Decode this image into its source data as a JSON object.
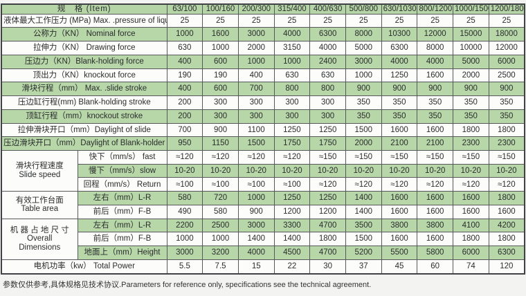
{
  "table": {
    "item_header": "规　格 (Item)",
    "models": [
      "63/100",
      "100/160",
      "200/300",
      "315/400",
      "400/630",
      "500/800",
      "630/1030",
      "800/1200",
      "1000/1500",
      "1200/1800"
    ],
    "rows": [
      {
        "label": "液体最大工作压力 (MPa)  Max. .pressure of liquid",
        "shade": false,
        "values": [
          "25",
          "25",
          "25",
          "25",
          "25",
          "25",
          "25",
          "25",
          "25",
          "25"
        ]
      },
      {
        "label": "公称力（KN）  Nominal force",
        "shade": true,
        "values": [
          "1000",
          "1600",
          "3000",
          "4000",
          "6300",
          "8000",
          "10300",
          "12000",
          "15000",
          "18000"
        ]
      },
      {
        "label": "拉伸力（KN）  Drawing force",
        "shade": false,
        "values": [
          "630",
          "1000",
          "2000",
          "3150",
          "4000",
          "5000",
          "6300",
          "8000",
          "10000",
          "12000"
        ]
      },
      {
        "label": "压边力（KN）Blank-holding force",
        "shade": true,
        "values": [
          "400",
          "600",
          "1000",
          "1000",
          "2400",
          "3000",
          "4000",
          "4000",
          "5000",
          "6000"
        ]
      },
      {
        "label": "顶出力（KN）knockout force",
        "shade": false,
        "values": [
          "190",
          "190",
          "400",
          "630",
          "630",
          "1000",
          "1250",
          "1600",
          "2000",
          "2500"
        ]
      },
      {
        "label": "滑块行程（mm）  Max. .slide stroke",
        "shade": true,
        "values": [
          "400",
          "600",
          "700",
          "800",
          "800",
          "900",
          "900",
          "900",
          "900",
          "900"
        ]
      },
      {
        "label": "压边缸行程(mm) Blank-holding stroke",
        "shade": false,
        "values": [
          "200",
          "300",
          "300",
          "300",
          "300",
          "350",
          "350",
          "350",
          "350",
          "350"
        ]
      },
      {
        "label": "顶缸行程（mm）knockout stroke",
        "shade": true,
        "values": [
          "200",
          "300",
          "300",
          "300",
          "300",
          "350",
          "350",
          "350",
          "350",
          "350"
        ]
      },
      {
        "label": "拉伸滑块开口（mm）Daylight of slide",
        "shade": false,
        "values": [
          "700",
          "900",
          "1100",
          "1250",
          "1250",
          "1500",
          "1600",
          "1600",
          "1800",
          "1800"
        ]
      },
      {
        "label": "压边滑块开口（mm）Daylight of Blank-holder",
        "shade": true,
        "values": [
          "950",
          "1150",
          "1500",
          "1750",
          "1750",
          "2000",
          "2100",
          "2100",
          "2300",
          "2300"
        ]
      },
      {
        "group": {
          "lines": [
            "滑块行程速度",
            "Slide speed"
          ],
          "span": 3
        },
        "sublabel": "快下（mm/s） fast",
        "shade": false,
        "values": [
          "≈120",
          "≈120",
          "≈120",
          "≈120",
          "≈150",
          "≈150",
          "≈150",
          "≈150",
          "≈150",
          "≈150"
        ]
      },
      {
        "sublabel": "慢下（mm/s）slow",
        "shade": true,
        "values": [
          "10-20",
          "10-20",
          "10-20",
          "10-20",
          "10-20",
          "10-20",
          "10-20",
          "10-20",
          "10-20",
          "10-20"
        ]
      },
      {
        "sublabel": "回程（mm/s） Return",
        "shade": false,
        "values": [
          "≈100",
          "≈100",
          "≈100",
          "≈100",
          "≈120",
          "≈120",
          "≈120",
          "≈120",
          "≈120",
          "≈120"
        ]
      },
      {
        "group": {
          "lines": [
            "有效工作台面",
            "Table  area"
          ],
          "span": 2
        },
        "sublabel": "左右（mm）L-R",
        "shade": true,
        "values": [
          "580",
          "720",
          "1000",
          "1250",
          "1250",
          "1400",
          "1600",
          "1600",
          "1600",
          "1800"
        ]
      },
      {
        "sublabel": "前后（mm）F-B",
        "shade": false,
        "values": [
          "490",
          "580",
          "900",
          "1200",
          "1200",
          "1400",
          "1600",
          "1600",
          "1600",
          "1600"
        ]
      },
      {
        "group": {
          "lines": [
            "机 器 占 地 尺 寸",
            "Overall",
            "Dimensions"
          ],
          "span": 3
        },
        "sublabel": "左右（mm）L-R",
        "shade": true,
        "values": [
          "2200",
          "2500",
          "3000",
          "3300",
          "4700",
          "3500",
          "3800",
          "3800",
          "4100",
          "4200"
        ]
      },
      {
        "sublabel": "前后（mm）F-B",
        "shade": false,
        "values": [
          "1000",
          "1000",
          "1400",
          "1400",
          "1800",
          "1500",
          "1600",
          "1600",
          "1800",
          "1800"
        ]
      },
      {
        "sublabel": "地面上（mm）Height",
        "shade": true,
        "values": [
          "3000",
          "3200",
          "4000",
          "4500",
          "4700",
          "5200",
          "5500",
          "5800",
          "6000",
          "6300"
        ]
      },
      {
        "label": "电机功率（kw）  Total Power",
        "shade": false,
        "values": [
          "5.5",
          "7.5",
          "15",
          "22",
          "30",
          "37",
          "45",
          "60",
          "74",
          "120"
        ]
      }
    ]
  },
  "footer_note": "参数仅供参考,具体规格见技术协议.Parameters for reference only, specifications see the technical agreement.",
  "colors": {
    "row_green": "#b7d7a8",
    "header_green": "#b5d5a6",
    "row_white": "#fcfdfa",
    "border": "#55575a",
    "text": "#2b2c2e"
  }
}
